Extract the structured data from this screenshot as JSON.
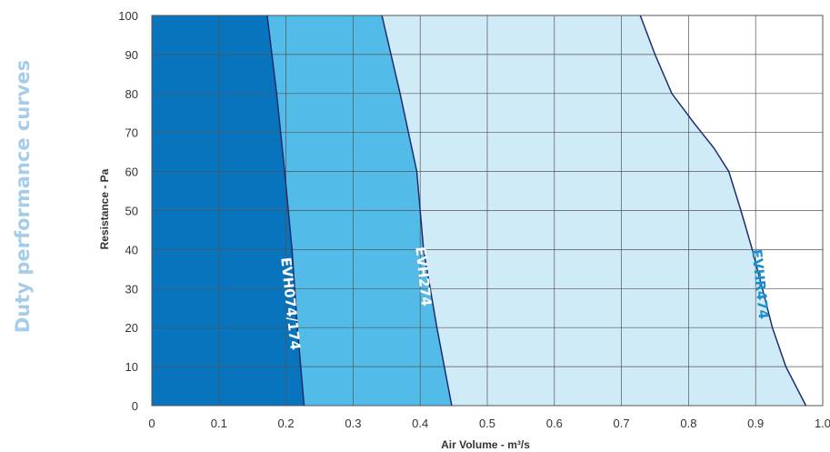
{
  "side_title": "Duty performance curves",
  "colors": {
    "side_title": "#a5cdea",
    "region_1": "#0774bd",
    "region_2": "#53bbe7",
    "region_3": "#d0ebf8",
    "curve_line": "#1e2c6e",
    "grid": "#555555",
    "label_light": "#ffffff",
    "label_accent": "#1a8fd0"
  },
  "chart_data": {
    "type": "area",
    "xlabel": "Air Volume - m³/s",
    "ylabel": "Resistance - Pa",
    "xlim": [
      0,
      1.0
    ],
    "ylim": [
      0,
      100
    ],
    "x_ticks": [
      "0",
      "0.1",
      "0.2",
      "0.3",
      "0.4",
      "0.5",
      "0.6",
      "0.7",
      "0.8",
      "0.9",
      "1.0"
    ],
    "y_ticks": [
      "0",
      "10",
      "20",
      "30",
      "40",
      "50",
      "60",
      "70",
      "80",
      "90",
      "100"
    ],
    "grid": true,
    "series": [
      {
        "name": "EVH074/174",
        "points": [
          [
            0.172,
            100
          ],
          [
            0.186,
            80
          ],
          [
            0.198,
            60
          ],
          [
            0.209,
            40
          ],
          [
            0.217,
            20
          ],
          [
            0.227,
            0
          ]
        ]
      },
      {
        "name": "EVH274",
        "points": [
          [
            0.343,
            100
          ],
          [
            0.37,
            80
          ],
          [
            0.395,
            60
          ],
          [
            0.405,
            40
          ],
          [
            0.425,
            20
          ],
          [
            0.447,
            0
          ]
        ]
      },
      {
        "name": "EVHR474",
        "points": [
          [
            0.728,
            100
          ],
          [
            0.75,
            90
          ],
          [
            0.775,
            80
          ],
          [
            0.81,
            72
          ],
          [
            0.838,
            66
          ],
          [
            0.86,
            60
          ],
          [
            0.878,
            50
          ],
          [
            0.895,
            40
          ],
          [
            0.91,
            30
          ],
          [
            0.925,
            20
          ],
          [
            0.945,
            10
          ],
          [
            0.975,
            0
          ]
        ]
      }
    ],
    "annotations": [
      {
        "text": "EVH074/174",
        "x": 0.2,
        "y": 26,
        "color": "label_light"
      },
      {
        "text": "EVH274",
        "x": 0.398,
        "y": 33,
        "color": "label_light"
      },
      {
        "text": "EVHR474",
        "x": 0.9,
        "y": 31,
        "color": "label_accent"
      }
    ]
  }
}
